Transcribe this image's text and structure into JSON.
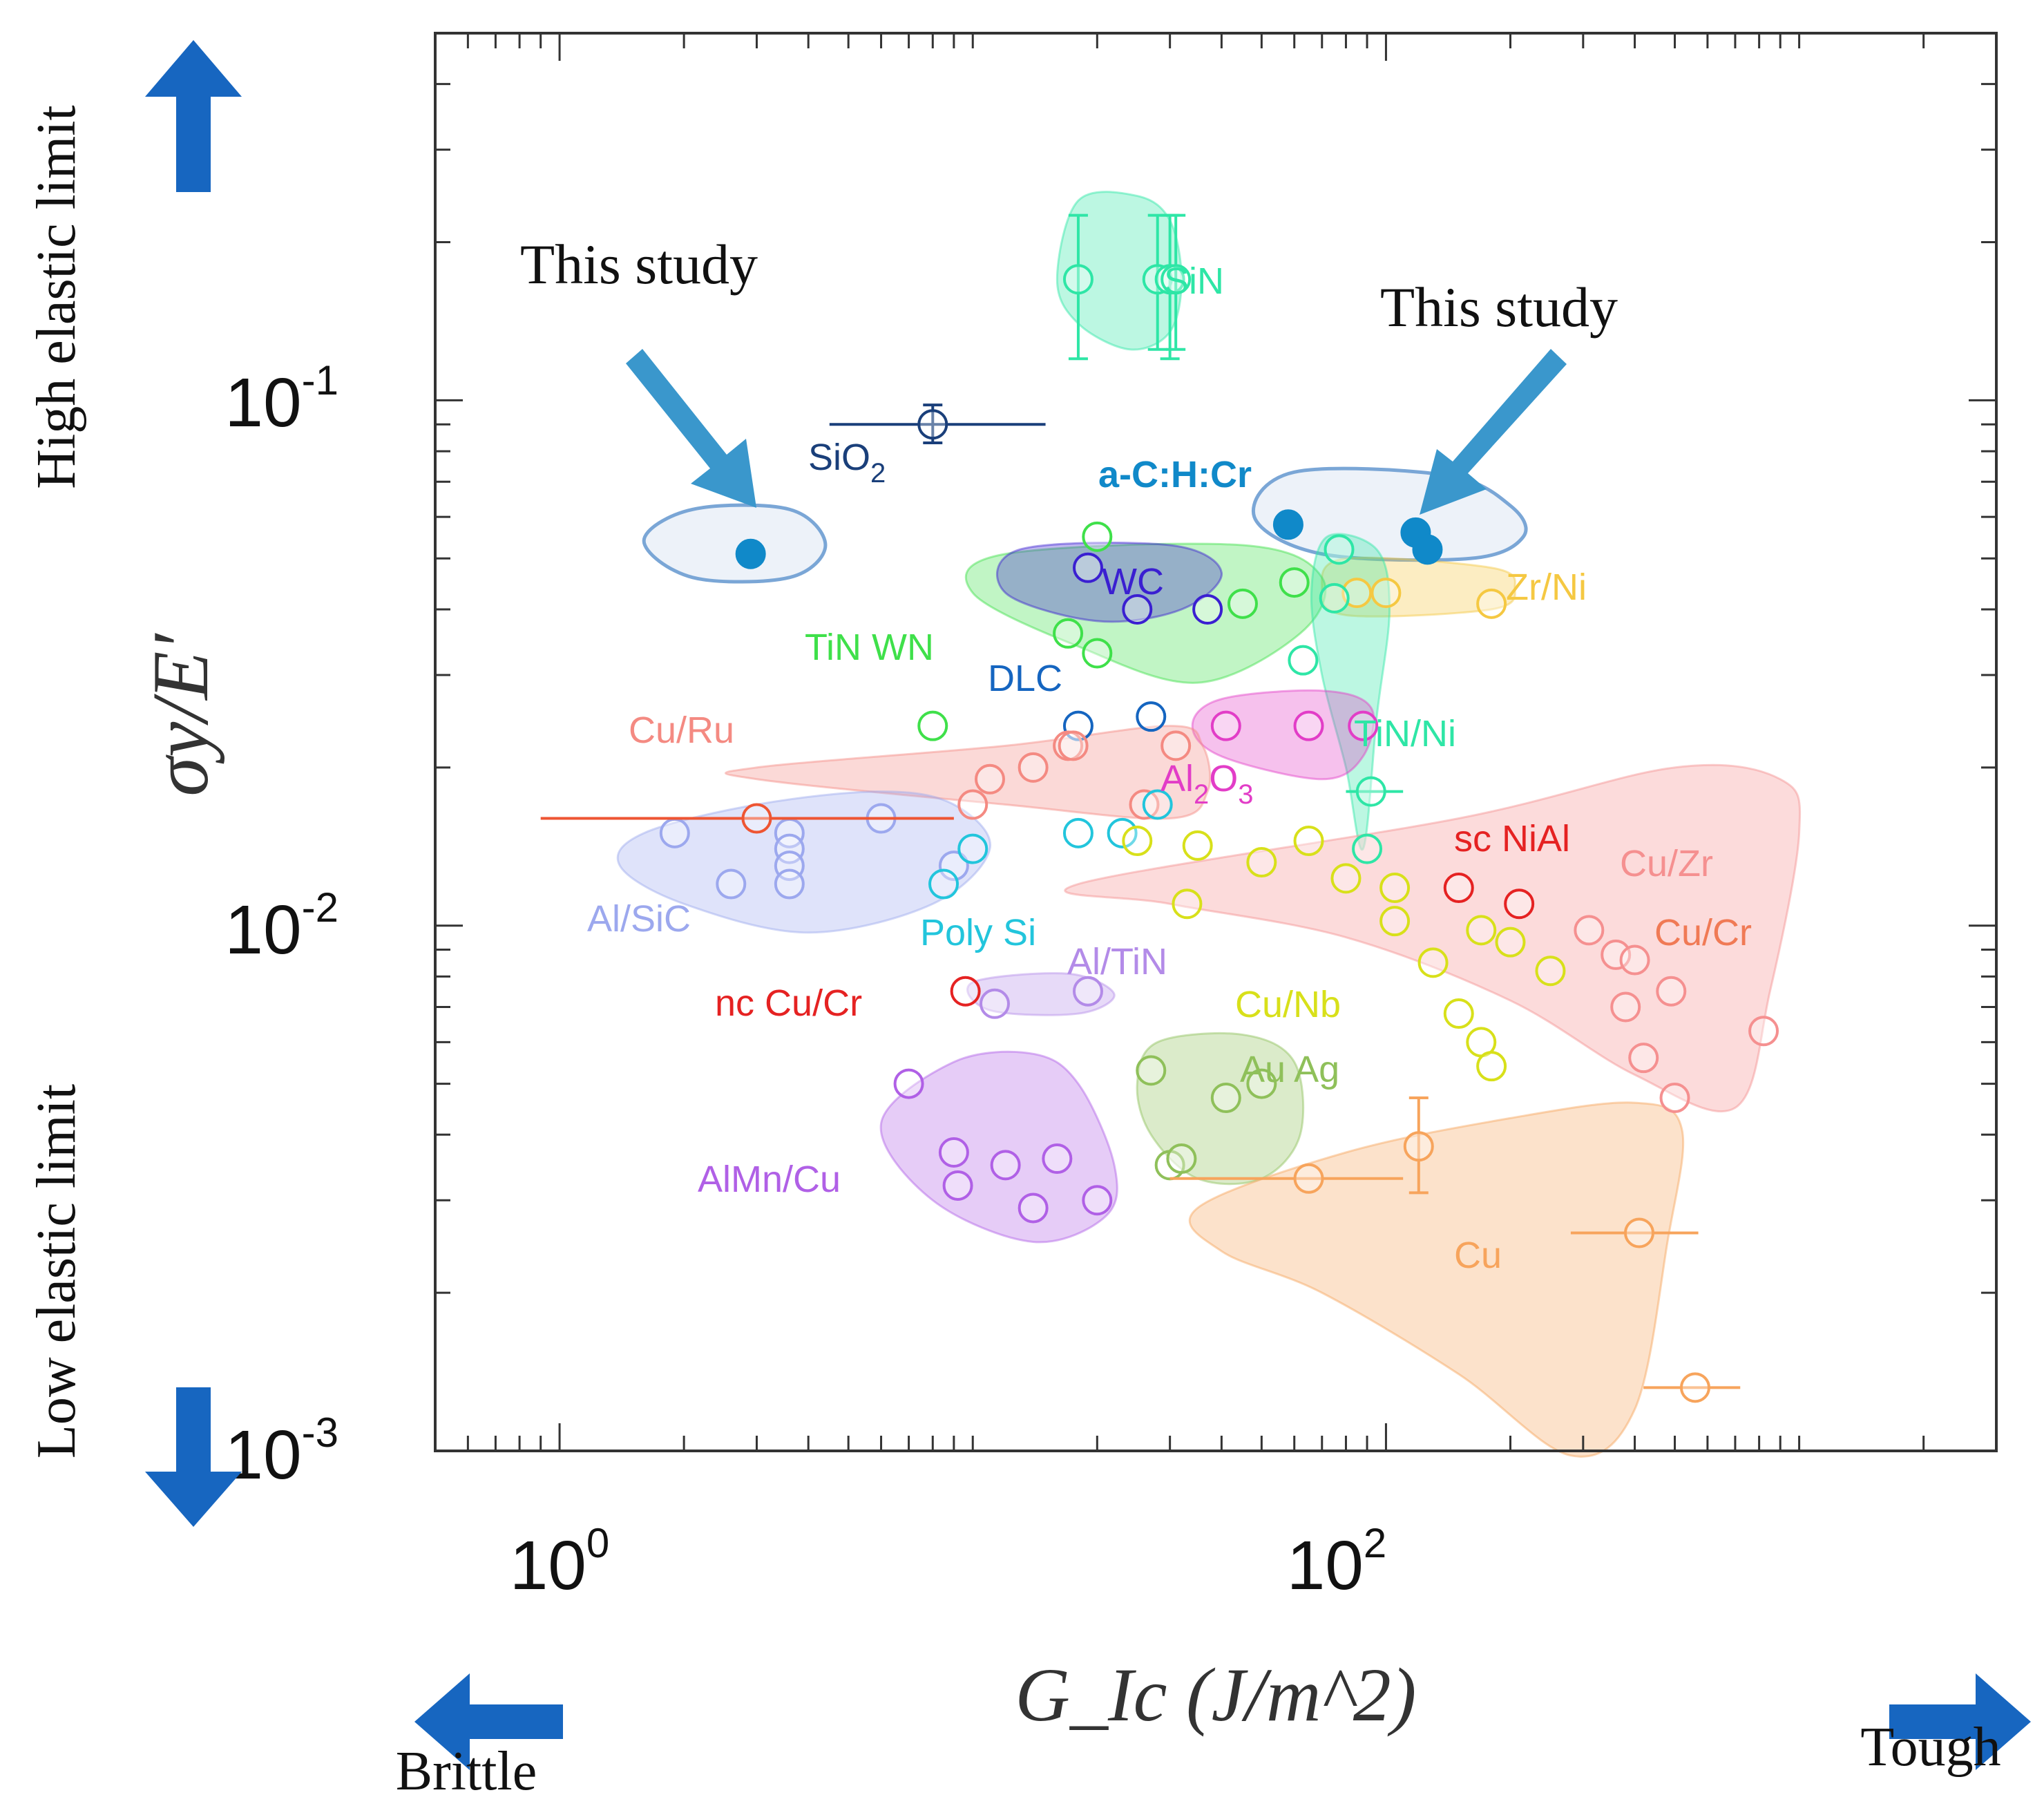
{
  "chart_data": {
    "type": "scatter",
    "title": "",
    "xlabel": "G_Ic (J/m^2)",
    "ylabel": "σy/E′",
    "x_scale": "log",
    "y_scale": "log",
    "xlim": [
      0.5,
      3000
    ],
    "ylim": [
      0.001,
      0.5
    ],
    "x_ticks": [
      {
        "base": "10",
        "exp": "0",
        "value": 1
      },
      {
        "base": "10",
        "exp": "2",
        "value": 100
      }
    ],
    "y_ticks": [
      {
        "base": "10",
        "exp": "-1",
        "value": 0.1
      },
      {
        "base": "10",
        "exp": "-2",
        "value": 0.01
      },
      {
        "base": "10",
        "exp": "-3",
        "value": 0.001
      }
    ],
    "arrows": {
      "up": "High elastic limit",
      "down": "Low elastic limit",
      "left": "Brittle",
      "right": "Tough"
    },
    "study_label": "This study",
    "regions": [
      {
        "name": "SiN",
        "label": "SiN",
        "color": "#2ee6a6",
        "outline": [
          [
            18,
            0.24
          ],
          [
            25,
            0.245
          ],
          [
            30,
            0.22
          ],
          [
            32,
            0.17
          ],
          [
            30,
            0.135
          ],
          [
            24,
            0.125
          ],
          [
            18,
            0.14
          ],
          [
            16,
            0.17
          ]
        ],
        "points": [
          {
            "x": 18,
            "y": 0.17,
            "yerr": [
              0.12,
              0.225
            ]
          },
          {
            "x": 28,
            "y": 0.17,
            "yerr": [
              0.125,
              0.225
            ]
          },
          {
            "x": 30,
            "y": 0.17,
            "yerr": [
              0.12,
              0.225
            ]
          },
          {
            "x": 31,
            "y": 0.17,
            "yerr": [
              0.125,
              0.225
            ]
          }
        ]
      },
      {
        "name": "SiO2",
        "label": "SiO",
        "sub": "2",
        "color": "#1a3f7a",
        "outline": null,
        "points": [
          {
            "x": 8,
            "y": 0.09,
            "xerr": [
              4.5,
              15
            ],
            "yerr": [
              0.083,
              0.098
            ]
          }
        ]
      },
      {
        "name": "a-C:H:Cr-left",
        "label": "",
        "color": "#1089c9",
        "outline": [
          [
            2.1,
            0.062
          ],
          [
            3.6,
            0.062
          ],
          [
            4.4,
            0.053
          ],
          [
            3.6,
            0.046
          ],
          [
            2.1,
            0.046
          ],
          [
            1.6,
            0.054
          ]
        ],
        "points": [
          {
            "x": 2.9,
            "y": 0.051,
            "filled": true
          }
        ]
      },
      {
        "name": "a-C:H:Cr-right",
        "label": "a-C:H:Cr",
        "color": "#1089c9",
        "outline": [
          [
            60,
            0.073
          ],
          [
            140,
            0.072
          ],
          [
            200,
            0.063
          ],
          [
            215,
            0.055
          ],
          [
            160,
            0.05
          ],
          [
            70,
            0.051
          ],
          [
            48,
            0.06
          ]
        ],
        "points": [
          {
            "x": 58,
            "y": 0.058,
            "filled": true
          },
          {
            "x": 118,
            "y": 0.056,
            "filled": true
          },
          {
            "x": 126,
            "y": 0.052,
            "filled": true
          }
        ]
      },
      {
        "name": "Zr/Ni",
        "label": "Zr/Ni",
        "color": "#f5c842",
        "outline": [
          [
            80,
            0.05
          ],
          [
            180,
            0.048
          ],
          [
            205,
            0.044
          ],
          [
            180,
            0.04
          ],
          [
            80,
            0.039
          ],
          [
            70,
            0.044
          ]
        ],
        "points": [
          {
            "x": 85,
            "y": 0.043
          },
          {
            "x": 100,
            "y": 0.043
          },
          {
            "x": 180,
            "y": 0.041
          }
        ]
      },
      {
        "name": "TiN WN",
        "label": "TiN WN",
        "color": "#3fe04a",
        "outline": [
          [
            12,
            0.051
          ],
          [
            45,
            0.053
          ],
          [
            70,
            0.046
          ],
          [
            62,
            0.036
          ],
          [
            35,
            0.029
          ],
          [
            18,
            0.034
          ],
          [
            10,
            0.043
          ]
        ],
        "points": [
          {
            "x": 20,
            "y": 0.055
          },
          {
            "x": 17,
            "y": 0.036
          },
          {
            "x": 20,
            "y": 0.033
          },
          {
            "x": 60,
            "y": 0.045
          },
          {
            "x": 45,
            "y": 0.041
          },
          {
            "x": 8,
            "y": 0.024
          }
        ]
      },
      {
        "name": "WC",
        "label": "WC",
        "color": "#3a1fd1",
        "outline": [
          [
            13,
            0.052
          ],
          [
            30,
            0.053
          ],
          [
            40,
            0.047
          ],
          [
            32,
            0.04
          ],
          [
            20,
            0.038
          ],
          [
            12,
            0.043
          ]
        ],
        "points": [
          {
            "x": 19,
            "y": 0.048
          },
          {
            "x": 25,
            "y": 0.04
          },
          {
            "x": 37,
            "y": 0.04
          }
        ]
      },
      {
        "name": "DLC",
        "label": "DLC",
        "color": "#1565c0",
        "outline": null,
        "points": [
          {
            "x": 18,
            "y": 0.024
          },
          {
            "x": 27,
            "y": 0.025
          }
        ]
      },
      {
        "name": "TiN/Ni",
        "label": "TiN/Ni",
        "color": "#2ee6a6",
        "outline": [
          [
            72,
            0.055
          ],
          [
            95,
            0.052
          ],
          [
            102,
            0.04
          ],
          [
            95,
            0.025
          ],
          [
            88,
            0.014
          ],
          [
            80,
            0.02
          ],
          [
            70,
            0.03
          ],
          [
            66,
            0.043
          ]
        ],
        "points": [
          {
            "x": 77,
            "y": 0.052
          },
          {
            "x": 75,
            "y": 0.042
          },
          {
            "x": 63,
            "y": 0.032
          },
          {
            "x": 92,
            "y": 0.018,
            "xerr": [
              80,
              110
            ]
          },
          {
            "x": 90,
            "y": 0.014
          }
        ]
      },
      {
        "name": "Al2O3",
        "label": "Al",
        "sub": "2",
        "label2": "O",
        "sub2": "3",
        "color": "#e23dc7",
        "outline": [
          [
            40,
            0.027
          ],
          [
            70,
            0.028
          ],
          [
            92,
            0.026
          ],
          [
            88,
            0.021
          ],
          [
            70,
            0.019
          ],
          [
            40,
            0.021
          ],
          [
            34,
            0.024
          ]
        ],
        "points": [
          {
            "x": 41,
            "y": 0.024
          },
          {
            "x": 65,
            "y": 0.024
          },
          {
            "x": 88,
            "y": 0.024
          }
        ]
      },
      {
        "name": "Cu/Ru",
        "label": "Cu/Ru",
        "color": "#f48a82",
        "outline": [
          [
            3,
            0.02
          ],
          [
            12,
            0.022
          ],
          [
            30,
            0.024
          ],
          [
            36,
            0.022
          ],
          [
            37,
            0.018
          ],
          [
            30,
            0.016
          ],
          [
            12,
            0.017
          ],
          [
            3,
            0.019
          ]
        ],
        "points": [
          {
            "x": 11,
            "y": 0.019
          },
          {
            "x": 14,
            "y": 0.02
          },
          {
            "x": 17,
            "y": 0.022
          },
          {
            "x": 17.5,
            "y": 0.022
          },
          {
            "x": 31,
            "y": 0.022
          },
          {
            "x": 10,
            "y": 0.017
          },
          {
            "x": 26,
            "y": 0.017
          }
        ]
      },
      {
        "name": "Al/SiC",
        "label": "Al/SiC",
        "color": "#9ca8ee",
        "outline": [
          [
            1.6,
            0.015
          ],
          [
            3,
            0.017
          ],
          [
            6,
            0.018
          ],
          [
            9,
            0.017
          ],
          [
            11,
            0.014
          ],
          [
            8,
            0.011
          ],
          [
            4,
            0.0097
          ],
          [
            2,
            0.011
          ],
          [
            1.4,
            0.013
          ]
        ],
        "points": [
          {
            "x": 1.9,
            "y": 0.015
          },
          {
            "x": 2.6,
            "y": 0.012
          },
          {
            "x": 3.6,
            "y": 0.015
          },
          {
            "x": 3.6,
            "y": 0.014
          },
          {
            "x": 3.6,
            "y": 0.013
          },
          {
            "x": 3.6,
            "y": 0.012
          },
          {
            "x": 6,
            "y": 0.016
          },
          {
            "x": 9,
            "y": 0.013
          }
        ]
      },
      {
        "name": "Cu-Ru-long",
        "label": "",
        "color": "#ee5533",
        "outline": null,
        "points": [
          {
            "x": 3,
            "y": 0.016,
            "xerr": [
              0.9,
              9
            ]
          }
        ]
      },
      {
        "name": "Poly Si",
        "label": "Poly Si",
        "color": "#22c5dc",
        "outline": null,
        "points": [
          {
            "x": 10,
            "y": 0.014
          },
          {
            "x": 18,
            "y": 0.015
          },
          {
            "x": 23,
            "y": 0.015
          },
          {
            "x": 28,
            "y": 0.017
          },
          {
            "x": 8.5,
            "y": 0.012
          }
        ]
      },
      {
        "name": "sc NiAl",
        "label": "sc NiAl",
        "color": "#e52222",
        "outline": null,
        "points": [
          {
            "x": 150,
            "y": 0.0118
          },
          {
            "x": 210,
            "y": 0.011
          }
        ]
      },
      {
        "name": "Cu/Zr-Cu/Cr",
        "label": "Cu/Zr",
        "label_extra": "Cu/Cr",
        "color": "#f59090",
        "outline": [
          [
            18,
            0.012
          ],
          [
            150,
            0.016
          ],
          [
            500,
            0.02
          ],
          [
            900,
            0.019
          ],
          [
            1000,
            0.015
          ],
          [
            850,
            0.0075
          ],
          [
            700,
            0.0045
          ],
          [
            400,
            0.0052
          ],
          [
            200,
            0.0072
          ],
          [
            80,
            0.0095
          ],
          [
            30,
            0.011
          ]
        ],
        "points": [
          {
            "x": 310,
            "y": 0.0098
          },
          {
            "x": 360,
            "y": 0.0088
          },
          {
            "x": 400,
            "y": 0.0086
          },
          {
            "x": 490,
            "y": 0.0075
          },
          {
            "x": 380,
            "y": 0.007
          },
          {
            "x": 420,
            "y": 0.0056
          },
          {
            "x": 500,
            "y": 0.0047
          },
          {
            "x": 820,
            "y": 0.0063
          }
        ]
      },
      {
        "name": "Cu/Nb",
        "label": "Cu/Nb",
        "color": "#d8e01a",
        "outline": null,
        "points": [
          {
            "x": 35,
            "y": 0.0142
          },
          {
            "x": 65,
            "y": 0.0145
          },
          {
            "x": 50,
            "y": 0.0132
          },
          {
            "x": 80,
            "y": 0.0123
          },
          {
            "x": 105,
            "y": 0.0118
          },
          {
            "x": 105,
            "y": 0.0102
          },
          {
            "x": 170,
            "y": 0.0098
          },
          {
            "x": 130,
            "y": 0.0085
          },
          {
            "x": 200,
            "y": 0.0093
          },
          {
            "x": 250,
            "y": 0.0082
          },
          {
            "x": 150,
            "y": 0.0068
          },
          {
            "x": 170,
            "y": 0.006
          },
          {
            "x": 180,
            "y": 0.0054
          },
          {
            "x": 33,
            "y": 0.011
          },
          {
            "x": 25,
            "y": 0.0145
          }
        ]
      },
      {
        "name": "Al/TiN",
        "label": "Al/TiN",
        "color": "#b38be8",
        "outline": [
          [
            10,
            0.0078
          ],
          [
            17,
            0.0081
          ],
          [
            22,
            0.0074
          ],
          [
            18,
            0.0068
          ],
          [
            11,
            0.0069
          ]
        ],
        "points": [
          {
            "x": 11.3,
            "y": 0.0071
          },
          {
            "x": 19,
            "y": 0.0075
          }
        ]
      },
      {
        "name": "nc Cu/Cr",
        "label": "nc Cu/Cr",
        "color": "#e52222",
        "outline": null,
        "points": [
          {
            "x": 9.6,
            "y": 0.0075
          }
        ]
      },
      {
        "name": "Au Ag",
        "label": "Au Ag",
        "color": "#8fc05a",
        "outline": [
          [
            28,
            0.006
          ],
          [
            45,
            0.0062
          ],
          [
            60,
            0.0055
          ],
          [
            62,
            0.004
          ],
          [
            50,
            0.0033
          ],
          [
            35,
            0.0033
          ],
          [
            27,
            0.004
          ],
          [
            25,
            0.005
          ]
        ],
        "points": [
          {
            "x": 27,
            "y": 0.0053
          },
          {
            "x": 41,
            "y": 0.0047
          },
          {
            "x": 50,
            "y": 0.005
          },
          {
            "x": 30,
            "y": 0.0035
          },
          {
            "x": 32,
            "y": 0.0036
          }
        ]
      },
      {
        "name": "AlMn/Cu",
        "label": "AlMn/Cu",
        "color": "#b060e6",
        "outline": [
          [
            9,
            0.0055
          ],
          [
            14,
            0.0057
          ],
          [
            18,
            0.005
          ],
          [
            22,
            0.0035
          ],
          [
            21,
            0.0028
          ],
          [
            14,
            0.0025
          ],
          [
            8,
            0.003
          ],
          [
            6,
            0.0042
          ]
        ],
        "points": [
          {
            "x": 7,
            "y": 0.005
          },
          {
            "x": 9,
            "y": 0.0037
          },
          {
            "x": 9.2,
            "y": 0.0032
          },
          {
            "x": 12,
            "y": 0.0035
          },
          {
            "x": 14,
            "y": 0.0029
          },
          {
            "x": 16,
            "y": 0.0036
          },
          {
            "x": 20,
            "y": 0.003
          }
        ]
      },
      {
        "name": "Cu",
        "label": "Cu",
        "color": "#f7a45c",
        "outline": [
          [
            35,
            0.0029
          ],
          [
            80,
            0.0037
          ],
          [
            200,
            0.0043
          ],
          [
            400,
            0.0046
          ],
          [
            520,
            0.0041
          ],
          [
            480,
            0.0025
          ],
          [
            400,
            0.0012
          ],
          [
            280,
            0.00098
          ],
          [
            150,
            0.0014
          ],
          [
            70,
            0.002
          ],
          [
            40,
            0.0024
          ]
        ],
        "points": [
          {
            "x": 65,
            "y": 0.0033,
            "xerr": [
              30,
              110
            ]
          },
          {
            "x": 120,
            "y": 0.0038,
            "yerr": [
              0.0031,
              0.0047
            ]
          },
          {
            "x": 410,
            "y": 0.0026,
            "xerr": [
              280,
              570
            ]
          },
          {
            "x": 560,
            "y": 0.00132,
            "xerr": [
              420,
              720
            ]
          }
        ]
      }
    ]
  }
}
